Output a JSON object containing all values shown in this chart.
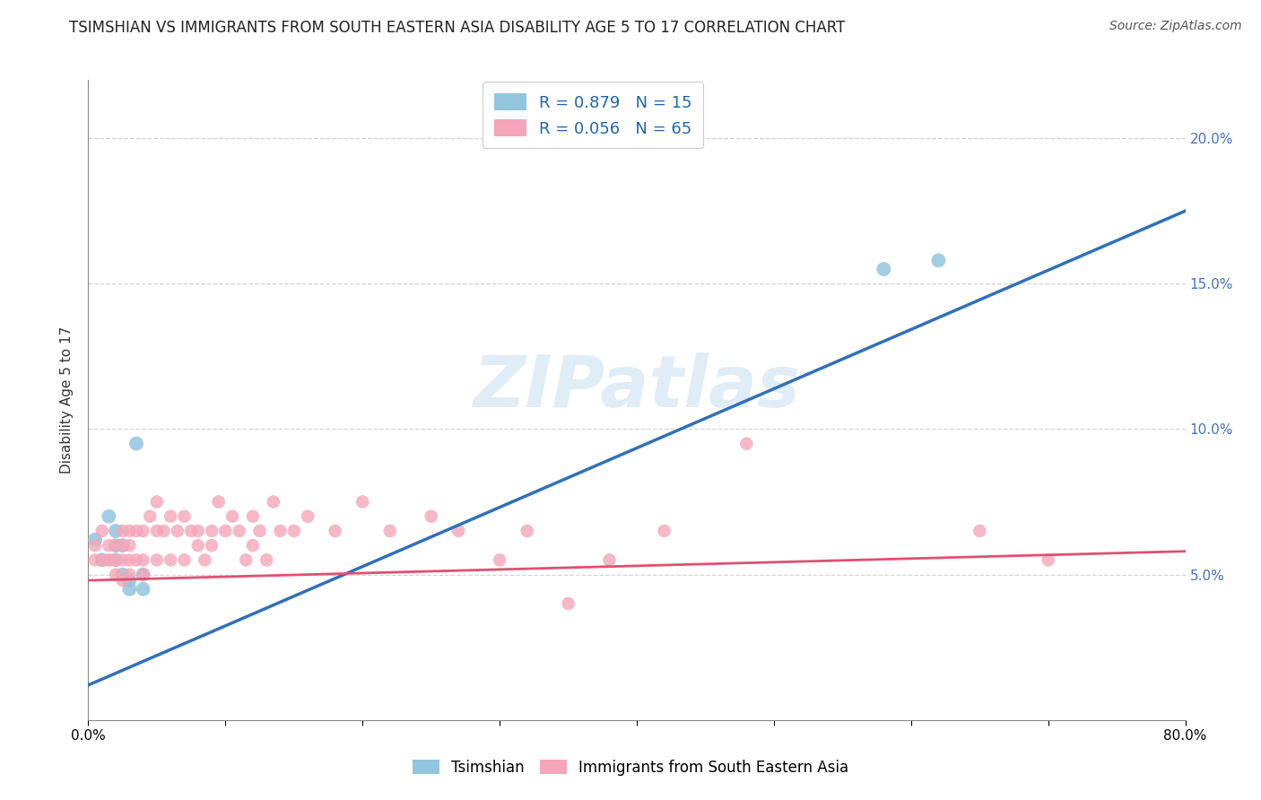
{
  "title": "TSIMSHIAN VS IMMIGRANTS FROM SOUTH EASTERN ASIA DISABILITY AGE 5 TO 17 CORRELATION CHART",
  "source": "Source: ZipAtlas.com",
  "ylabel": "Disability Age 5 to 17",
  "xlim": [
    0.0,
    0.8
  ],
  "ylim": [
    0.0,
    0.22
  ],
  "yticks": [
    0.05,
    0.1,
    0.15,
    0.2
  ],
  "ytick_labels": [
    "5.0%",
    "10.0%",
    "15.0%",
    "20.0%"
  ],
  "xticks": [
    0.0,
    0.1,
    0.2,
    0.3,
    0.4,
    0.5,
    0.6,
    0.7,
    0.8
  ],
  "xtick_labels": [
    "0.0%",
    "",
    "",
    "",
    "",
    "",
    "",
    "",
    "80.0%"
  ],
  "legend_line1": "R = 0.879   N = 15",
  "legend_line2": "R = 0.056   N = 65",
  "blue_scatter_color": "#92c5de",
  "pink_scatter_color": "#f4a6b8",
  "blue_line_color": "#3070b8",
  "pink_line_color": "#e05070",
  "watermark": "ZIPatlas",
  "tsimshian_x": [
    0.005,
    0.01,
    0.015,
    0.02,
    0.02,
    0.02,
    0.025,
    0.025,
    0.03,
    0.03,
    0.035,
    0.04,
    0.04,
    0.58,
    0.62
  ],
  "tsimshian_y": [
    0.062,
    0.055,
    0.07,
    0.055,
    0.06,
    0.065,
    0.06,
    0.05,
    0.048,
    0.045,
    0.095,
    0.05,
    0.045,
    0.155,
    0.158
  ],
  "sea_x": [
    0.005,
    0.005,
    0.01,
    0.01,
    0.015,
    0.015,
    0.015,
    0.02,
    0.02,
    0.02,
    0.025,
    0.025,
    0.025,
    0.025,
    0.03,
    0.03,
    0.03,
    0.03,
    0.035,
    0.035,
    0.04,
    0.04,
    0.04,
    0.045,
    0.05,
    0.05,
    0.05,
    0.055,
    0.06,
    0.06,
    0.065,
    0.07,
    0.07,
    0.075,
    0.08,
    0.08,
    0.085,
    0.09,
    0.09,
    0.095,
    0.1,
    0.105,
    0.11,
    0.115,
    0.12,
    0.12,
    0.125,
    0.13,
    0.135,
    0.14,
    0.15,
    0.16,
    0.18,
    0.2,
    0.22,
    0.25,
    0.27,
    0.3,
    0.32,
    0.35,
    0.38,
    0.42,
    0.48,
    0.65,
    0.7
  ],
  "sea_y": [
    0.055,
    0.06,
    0.055,
    0.065,
    0.055,
    0.055,
    0.06,
    0.05,
    0.055,
    0.06,
    0.048,
    0.055,
    0.06,
    0.065,
    0.05,
    0.055,
    0.06,
    0.065,
    0.055,
    0.065,
    0.05,
    0.055,
    0.065,
    0.07,
    0.055,
    0.065,
    0.075,
    0.065,
    0.055,
    0.07,
    0.065,
    0.055,
    0.07,
    0.065,
    0.06,
    0.065,
    0.055,
    0.06,
    0.065,
    0.075,
    0.065,
    0.07,
    0.065,
    0.055,
    0.06,
    0.07,
    0.065,
    0.055,
    0.075,
    0.065,
    0.065,
    0.07,
    0.065,
    0.075,
    0.065,
    0.07,
    0.065,
    0.055,
    0.065,
    0.04,
    0.055,
    0.065,
    0.095,
    0.065,
    0.055
  ],
  "blue_line_x": [
    0.0,
    0.8
  ],
  "blue_line_y": [
    0.012,
    0.175
  ],
  "pink_line_x": [
    0.0,
    0.8
  ],
  "pink_line_y": [
    0.048,
    0.058
  ],
  "grid_color": "#c8c8c8",
  "bg_color": "#ffffff",
  "title_fontsize": 12,
  "axis_fontsize": 11,
  "tick_fontsize": 11,
  "right_tick_color": "#4472c4",
  "legend_text_color": "#2166ac"
}
